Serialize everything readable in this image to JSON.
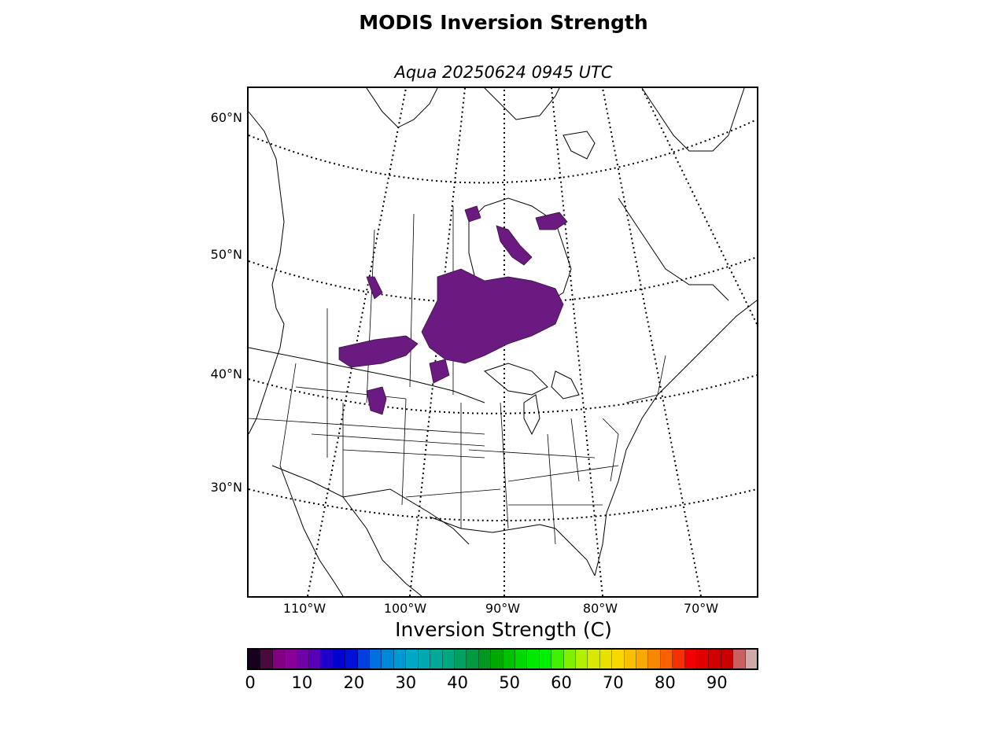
{
  "title": "MODIS Inversion Strength",
  "subtitle": "Aqua 20250624 0945 UTC",
  "map": {
    "lat_labels": [
      {
        "text": "60°N",
        "lat": 60
      },
      {
        "text": "50°N",
        "lat": 50
      },
      {
        "text": "40°N",
        "lat": 40
      },
      {
        "text": "30°N",
        "lat": 30
      }
    ],
    "lon_labels": [
      {
        "text": "110°W",
        "lon": -110
      },
      {
        "text": "100°W",
        "lon": -100
      },
      {
        "text": "90°W",
        "lon": -90
      },
      {
        "text": "80°W",
        "lon": -80
      },
      {
        "text": "70°W",
        "lon": -70
      }
    ],
    "inversion_color": "#6a1a80",
    "inversion_dark": "#3a1040"
  },
  "colorbar": {
    "label": "Inversion Strength (C)",
    "ticks": [
      "0",
      "10",
      "20",
      "30",
      "40",
      "50",
      "60",
      "70",
      "80",
      "90"
    ],
    "colors": [
      "#1a0020",
      "#4a0a40",
      "#800080",
      "#880098",
      "#7000a8",
      "#5800b8",
      "#2000c8",
      "#0000d0",
      "#0010d8",
      "#0040e0",
      "#0070e0",
      "#0088d8",
      "#0098d0",
      "#00a8c8",
      "#00a8b0",
      "#00a898",
      "#00a880",
      "#00a060",
      "#009840",
      "#009820",
      "#00a800",
      "#00c000",
      "#00d800",
      "#00e800",
      "#00f000",
      "#40f000",
      "#80f000",
      "#b0f000",
      "#d8e800",
      "#e8e000",
      "#f8d800",
      "#f8c000",
      "#f8a800",
      "#f88800",
      "#f86000",
      "#f83000",
      "#f00000",
      "#e00000",
      "#d00000",
      "#c80000",
      "#c86060",
      "#d0a8a8"
    ]
  }
}
